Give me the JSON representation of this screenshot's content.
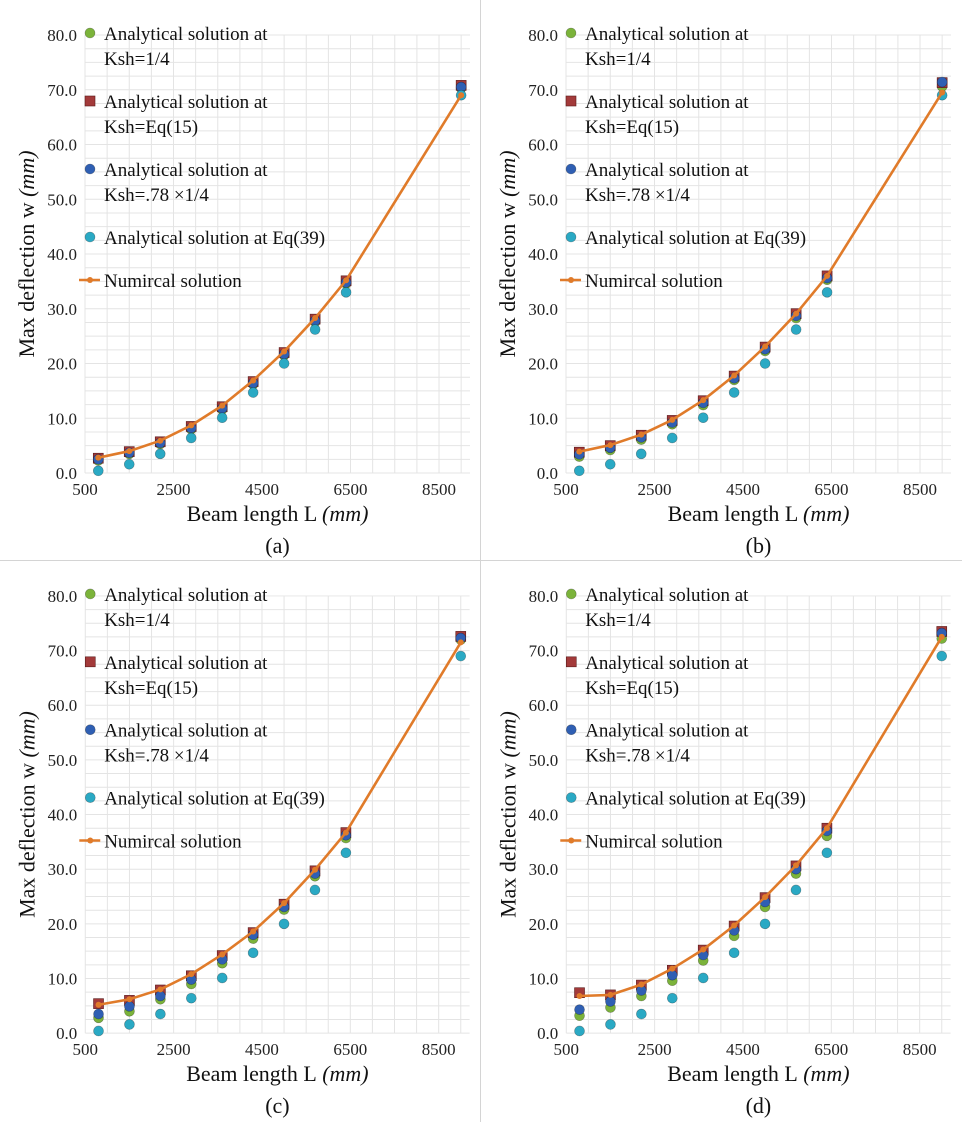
{
  "chart_data": [
    {
      "type": "line",
      "panel_label": "(a)",
      "xlabel_text": "Beam length  L",
      "xlabel_unit": "(mm)",
      "ylabel_text": "Max deflection w",
      "ylabel_unit": "(mm)",
      "ylim": [
        0,
        80
      ],
      "xlim": [
        500,
        9200
      ],
      "yticks": [
        "0.0",
        "10.0",
        "20.0",
        "30.0",
        "40.0",
        "50.0",
        "60.0",
        "70.0",
        "80.0"
      ],
      "xticks": [
        "500",
        "2500",
        "4500",
        "6500",
        "8500"
      ],
      "grid": true,
      "legend_position": "top-left",
      "x": [
        800,
        1500,
        2200,
        2900,
        3600,
        4300,
        5000,
        5700,
        6400,
        9000
      ],
      "series": [
        {
          "name_lines": [
            "Analytical solution at",
            "Ksh=1/4"
          ],
          "marker": "circle",
          "color": "#7bb33a",
          "values": [
            2.3,
            3.5,
            5.3,
            8.0,
            11.6,
            16.2,
            21.5,
            27.6,
            34.6,
            70.3
          ]
        },
        {
          "name_lines": [
            "Analytical solution at",
            "Ksh=Eq(15)"
          ],
          "marker": "square",
          "color": "#a33a3a",
          "values": [
            2.7,
            3.9,
            5.7,
            8.5,
            12.1,
            16.7,
            22.0,
            28.1,
            35.1,
            70.8
          ]
        },
        {
          "name_lines": [
            "Analytical solution at",
            "Ksh=.78 ×1/4"
          ],
          "marker": "circle",
          "color": "#2f5fb3",
          "values": [
            2.5,
            3.7,
            5.5,
            8.2,
            11.8,
            16.4,
            21.7,
            27.8,
            34.8,
            70.5
          ]
        },
        {
          "name_lines": [
            "Analytical solution at Eq(39)"
          ],
          "marker": "circle",
          "color": "#2aa9c4",
          "values": [
            0.4,
            1.6,
            3.5,
            6.4,
            10.1,
            14.7,
            20.0,
            26.2,
            33.0,
            69.0
          ]
        },
        {
          "name_lines": [
            "Numircal solution"
          ],
          "marker": "line",
          "color": "#e07b2a",
          "values": [
            2.8,
            4.0,
            5.9,
            8.7,
            12.3,
            16.9,
            22.2,
            28.3,
            35.2,
            69.0
          ]
        }
      ]
    },
    {
      "type": "line",
      "panel_label": "(b)",
      "xlabel_text": "Beam length  L",
      "xlabel_unit": "(mm)",
      "ylabel_text": "Max deflection w",
      "ylabel_unit": "(mm)",
      "ylim": [
        0,
        80
      ],
      "xlim": [
        500,
        9200
      ],
      "yticks": [
        "0.0",
        "10.0",
        "20.0",
        "30.0",
        "40.0",
        "50.0",
        "60.0",
        "70.0",
        "80.0"
      ],
      "xticks": [
        "500",
        "2500",
        "4500",
        "6500",
        "8500"
      ],
      "grid": true,
      "legend_position": "top-left",
      "x": [
        800,
        1500,
        2200,
        2900,
        3600,
        4300,
        5000,
        5700,
        6400,
        9000
      ],
      "series": [
        {
          "name_lines": [
            "Analytical solution at",
            "Ksh=1/4"
          ],
          "marker": "circle",
          "color": "#7bb33a",
          "values": [
            3.0,
            4.2,
            6.1,
            8.9,
            12.4,
            17.0,
            22.3,
            28.3,
            35.3,
            70.6
          ]
        },
        {
          "name_lines": [
            "Analytical solution at",
            "Ksh=Eq(15)"
          ],
          "marker": "square",
          "color": "#a33a3a",
          "values": [
            3.8,
            5.0,
            6.9,
            9.6,
            13.2,
            17.7,
            23.0,
            29.1,
            36.0,
            71.3
          ]
        },
        {
          "name_lines": [
            "Analytical solution at",
            "Ksh=.78 ×1/4"
          ],
          "marker": "circle",
          "color": "#2f5fb3",
          "values": [
            3.4,
            4.6,
            6.5,
            9.2,
            12.8,
            17.3,
            22.6,
            28.7,
            35.6,
            71.4
          ]
        },
        {
          "name_lines": [
            "Analytical solution at Eq(39)"
          ],
          "marker": "circle",
          "color": "#2aa9c4",
          "values": [
            0.4,
            1.6,
            3.5,
            6.4,
            10.1,
            14.7,
            20.0,
            26.2,
            33.0,
            69.0
          ]
        },
        {
          "name_lines": [
            "Numircal solution"
          ],
          "marker": "line",
          "color": "#e07b2a",
          "values": [
            3.9,
            5.1,
            7.0,
            9.7,
            13.3,
            17.8,
            23.1,
            29.1,
            36.0,
            69.5
          ]
        }
      ]
    },
    {
      "type": "line",
      "panel_label": "(c)",
      "xlabel_text": "Beam length  L",
      "xlabel_unit": "(mm)",
      "ylabel_text": "Max deflection w",
      "ylabel_unit": "(mm)",
      "ylim": [
        0,
        80
      ],
      "xlim": [
        500,
        9200
      ],
      "yticks": [
        "0.0",
        "10.0",
        "20.0",
        "30.0",
        "40.0",
        "50.0",
        "60.0",
        "70.0",
        "80.0"
      ],
      "xticks": [
        "500",
        "2500",
        "4500",
        "6500",
        "8500"
      ],
      "grid": true,
      "legend_position": "top-left",
      "x": [
        800,
        1500,
        2200,
        2900,
        3600,
        4300,
        5000,
        5700,
        6400,
        9000
      ],
      "series": [
        {
          "name_lines": [
            "Analytical solution at",
            "Ksh=1/4"
          ],
          "marker": "circle",
          "color": "#7bb33a",
          "values": [
            2.8,
            4.0,
            6.2,
            9.0,
            12.8,
            17.3,
            22.6,
            28.7,
            35.7,
            72.0
          ]
        },
        {
          "name_lines": [
            "Analytical solution at",
            "Ksh=Eq(15)"
          ],
          "marker": "square",
          "color": "#a33a3a",
          "values": [
            5.4,
            6.0,
            7.9,
            10.5,
            14.2,
            18.4,
            23.6,
            29.7,
            36.7,
            72.6
          ]
        },
        {
          "name_lines": [
            "Analytical solution at",
            "Ksh=.78 ×1/4"
          ],
          "marker": "circle",
          "color": "#2f5fb3",
          "values": [
            3.5,
            4.9,
            6.8,
            9.8,
            13.5,
            18.0,
            23.1,
            29.2,
            36.2,
            72.3
          ]
        },
        {
          "name_lines": [
            "Analytical solution at Eq(39)"
          ],
          "marker": "circle",
          "color": "#2aa9c4",
          "values": [
            0.4,
            1.6,
            3.5,
            6.4,
            10.1,
            14.7,
            20.0,
            26.2,
            33.0,
            69.0
          ]
        },
        {
          "name_lines": [
            "Numircal solution"
          ],
          "marker": "line",
          "color": "#e07b2a",
          "values": [
            5.2,
            6.2,
            8.0,
            10.8,
            14.4,
            18.6,
            23.8,
            29.9,
            36.7,
            71.5
          ]
        }
      ]
    },
    {
      "type": "line",
      "panel_label": "(d)",
      "xlabel_text": "Beam length  L",
      "xlabel_unit": "(mm)",
      "ylabel_text": "Max deflection w",
      "ylabel_unit": "(mm)",
      "ylim": [
        0,
        80
      ],
      "xlim": [
        500,
        9200
      ],
      "yticks": [
        "0.0",
        "10.0",
        "20.0",
        "30.0",
        "40.0",
        "50.0",
        "60.0",
        "70.0",
        "80.0"
      ],
      "xticks": [
        "500",
        "2500",
        "4500",
        "6500",
        "8500"
      ],
      "grid": true,
      "legend_position": "top-left",
      "x": [
        800,
        1500,
        2200,
        2900,
        3600,
        4300,
        5000,
        5700,
        6400,
        9000
      ],
      "series": [
        {
          "name_lines": [
            "Analytical solution at",
            "Ksh=1/4"
          ],
          "marker": "circle",
          "color": "#7bb33a",
          "values": [
            3.2,
            4.7,
            6.8,
            9.6,
            13.3,
            17.8,
            23.1,
            29.2,
            36.1,
            72.2
          ]
        },
        {
          "name_lines": [
            "Analytical solution at",
            "Ksh=Eq(15)"
          ],
          "marker": "square",
          "color": "#a33a3a",
          "values": [
            7.4,
            7.0,
            8.8,
            11.5,
            15.2,
            19.6,
            24.8,
            30.6,
            37.5,
            73.5
          ]
        },
        {
          "name_lines": [
            "Analytical solution at",
            "Ksh=.78 ×1/4"
          ],
          "marker": "circle",
          "color": "#2f5fb3",
          "values": [
            4.3,
            5.8,
            7.8,
            10.6,
            14.3,
            18.8,
            24.0,
            30.0,
            37.0,
            73.2
          ]
        },
        {
          "name_lines": [
            "Analytical solution at Eq(39)"
          ],
          "marker": "circle",
          "color": "#2aa9c4",
          "values": [
            0.4,
            1.6,
            3.5,
            6.4,
            10.1,
            14.7,
            20.0,
            26.2,
            33.0,
            69.0
          ]
        },
        {
          "name_lines": [
            "Numircal solution"
          ],
          "marker": "line",
          "color": "#e07b2a",
          "values": [
            6.8,
            7.0,
            8.9,
            11.8,
            15.3,
            19.7,
            24.9,
            30.7,
            37.5,
            72.5
          ]
        }
      ]
    }
  ]
}
